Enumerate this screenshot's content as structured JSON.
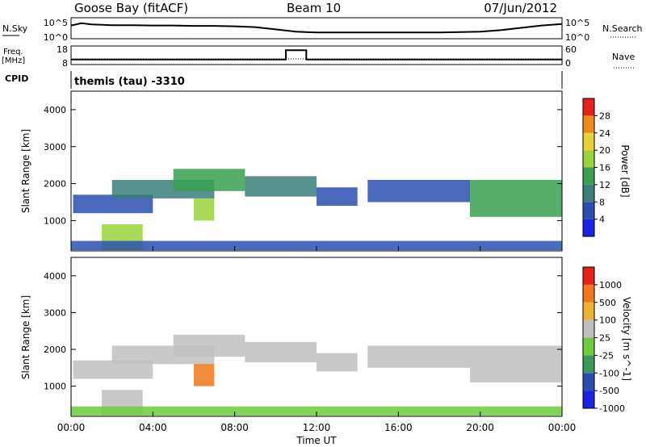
{
  "header": {
    "station": "Goose Bay (fitACF)",
    "beam": "Beam 10",
    "date": "07/Jun/2012"
  },
  "noise_panel": {
    "left_label": "N.Sky",
    "left_ticks": [
      "10^5",
      "10^0"
    ],
    "right_ticks": [
      "10^5",
      "10^0"
    ],
    "right_label": "N.Search"
  },
  "freq_panel": {
    "left_label_line1": "Freq.",
    "left_label_line2": "[MHz]",
    "left_ticks": [
      "18",
      "8"
    ],
    "right_ticks": [
      "60",
      "0"
    ],
    "right_label": "Nave"
  },
  "cpid_panel": {
    "label": "CPID",
    "program": "themis (tau) -3310"
  },
  "x_axis": {
    "ticks": [
      "00:00",
      "04:00",
      "08:00",
      "12:00",
      "16:00",
      "20:00",
      "00:00"
    ],
    "label": "Time UT"
  },
  "power_panel": {
    "ylabel": "Slant Range [km]",
    "yticks": [
      "4000",
      "3000",
      "2000",
      "1000"
    ],
    "colorbar_label": "Power [dB]",
    "colorbar_ticks": [
      "28",
      "24",
      "20",
      "16",
      "12",
      "8",
      "4"
    ],
    "colors": [
      "#1a22e6",
      "#2b4fb0",
      "#3a7f7a",
      "#3aa050",
      "#9ad43a",
      "#e8d23a",
      "#f08a1a",
      "#e8201a"
    ]
  },
  "velocity_panel": {
    "ylabel": "Slant Range [km]",
    "yticks": [
      "4000",
      "3000",
      "2000",
      "1000"
    ],
    "colorbar_label": "Velocity  [m s^-1]",
    "colorbar_ticks": [
      "1000",
      "500",
      "100",
      "25",
      "-25",
      "-100",
      "-500",
      "-1000"
    ],
    "colors": [
      "#1a22e6",
      "#2b4fb0",
      "#3a9a5a",
      "#6ccc3a",
      "#bfbfbf",
      "#f0b030",
      "#f07818",
      "#e8201a"
    ]
  },
  "chart_data": [
    {
      "type": "line",
      "name": "noise",
      "x_range_hours": [
        0,
        24
      ],
      "note_scale": "log",
      "x": [
        0,
        0.5,
        1,
        2,
        3,
        4,
        5,
        6,
        7,
        8,
        9,
        10,
        11,
        12,
        13,
        14,
        15,
        16,
        17,
        18,
        19,
        20,
        21,
        22,
        23,
        24
      ],
      "y_log10": [
        3.2,
        3.8,
        3.5,
        3.3,
        3.3,
        3.2,
        3.2,
        3.1,
        3.1,
        3.0,
        2.8,
        2.2,
        1.6,
        1.4,
        1.4,
        1.4,
        1.4,
        1.4,
        1.4,
        1.4,
        1.5,
        1.6,
        2.0,
        2.6,
        3.2,
        3.6
      ],
      "ylim_log10": [
        0,
        5
      ]
    },
    {
      "type": "line",
      "name": "frequency",
      "x_range_hours": [
        0,
        24
      ],
      "x": [
        0,
        10.5,
        10.5,
        11.5,
        11.5,
        24
      ],
      "y": [
        10.5,
        10.5,
        16,
        16,
        10.5,
        10.5
      ],
      "ylim": [
        8,
        18
      ]
    },
    {
      "type": "heatmap",
      "name": "power",
      "x_range_hours": [
        0,
        24
      ],
      "ylim_km": [
        180,
        4500
      ],
      "regions": [
        {
          "x": [
            0.1,
            4.0
          ],
          "y": [
            1200,
            1700
          ],
          "level": 1
        },
        {
          "x": [
            2.0,
            7.0
          ],
          "y": [
            1600,
            2100
          ],
          "level": 2
        },
        {
          "x": [
            5.0,
            8.5
          ],
          "y": [
            1800,
            2400
          ],
          "level": 3
        },
        {
          "x": [
            8.5,
            12.0
          ],
          "y": [
            1650,
            2200
          ],
          "level": 2
        },
        {
          "x": [
            12.0,
            14.0
          ],
          "y": [
            1400,
            1900
          ],
          "level": 1
        },
        {
          "x": [
            14.5,
            19.5
          ],
          "y": [
            1500,
            2100
          ],
          "level": 1
        },
        {
          "x": [
            19.5,
            24.0
          ],
          "y": [
            1100,
            2100
          ],
          "level": 3
        },
        {
          "x": [
            1.5,
            3.5
          ],
          "y": [
            200,
            900
          ],
          "level": 4
        },
        {
          "x": [
            6.0,
            7.0
          ],
          "y": [
            1000,
            1600
          ],
          "level": 4
        },
        {
          "x": [
            0.0,
            24.0
          ],
          "y": [
            200,
            450
          ],
          "level": 1
        }
      ]
    },
    {
      "type": "heatmap",
      "name": "velocity",
      "x_range_hours": [
        0,
        24
      ],
      "ylim_km": [
        180,
        4500
      ],
      "regions": [
        {
          "x": [
            0.1,
            4.0
          ],
          "y": [
            1200,
            1700
          ],
          "level": 4
        },
        {
          "x": [
            2.0,
            7.0
          ],
          "y": [
            1600,
            2100
          ],
          "level": 4
        },
        {
          "x": [
            5.0,
            8.5
          ],
          "y": [
            1800,
            2400
          ],
          "level": 4
        },
        {
          "x": [
            8.5,
            12.0
          ],
          "y": [
            1650,
            2200
          ],
          "level": 4
        },
        {
          "x": [
            12.0,
            14.0
          ],
          "y": [
            1400,
            1900
          ],
          "level": 4
        },
        {
          "x": [
            14.5,
            19.5
          ],
          "y": [
            1500,
            2100
          ],
          "level": 4
        },
        {
          "x": [
            19.5,
            24.0
          ],
          "y": [
            1100,
            2100
          ],
          "level": 4
        },
        {
          "x": [
            1.5,
            3.5
          ],
          "y": [
            200,
            900
          ],
          "level": 4
        },
        {
          "x": [
            6.0,
            7.0
          ],
          "y": [
            1000,
            1600
          ],
          "level": 6
        },
        {
          "x": [
            0.0,
            24.0
          ],
          "y": [
            200,
            450
          ],
          "level": 3
        }
      ]
    }
  ]
}
